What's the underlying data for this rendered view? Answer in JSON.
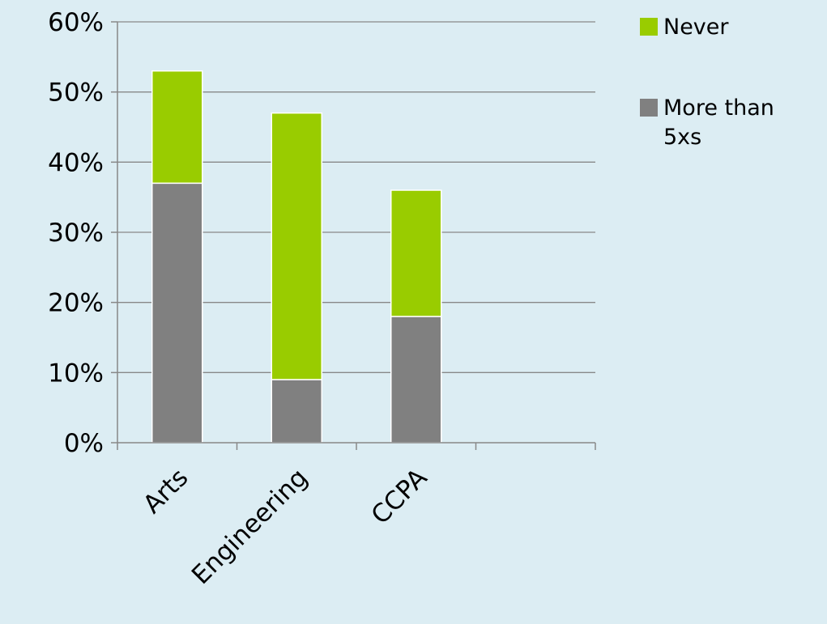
{
  "chart_data": {
    "type": "bar",
    "stacked": true,
    "categories": [
      "Arts",
      "Engineering",
      "CCPA"
    ],
    "series": [
      {
        "name": "More than 5xs",
        "values": [
          37,
          9,
          18
        ],
        "color": "#808080"
      },
      {
        "name": "Never",
        "values": [
          16,
          38,
          18
        ],
        "color": "#99cc00"
      }
    ],
    "ylim": [
      0,
      60
    ],
    "yticks": [
      "0%",
      "10%",
      "20%",
      "30%",
      "40%",
      "50%",
      "60%"
    ],
    "grid": true,
    "legend_position": "right",
    "legend": [
      {
        "name": "Never",
        "lines": [
          "Never"
        ],
        "color": "#99cc00"
      },
      {
        "name": "More than 5xs",
        "lines": [
          "More than",
          "5xs"
        ],
        "color": "#808080"
      }
    ]
  },
  "colors": {
    "background": "#dcedf3",
    "axis": "#888888",
    "bar_border": "#ffffff"
  }
}
